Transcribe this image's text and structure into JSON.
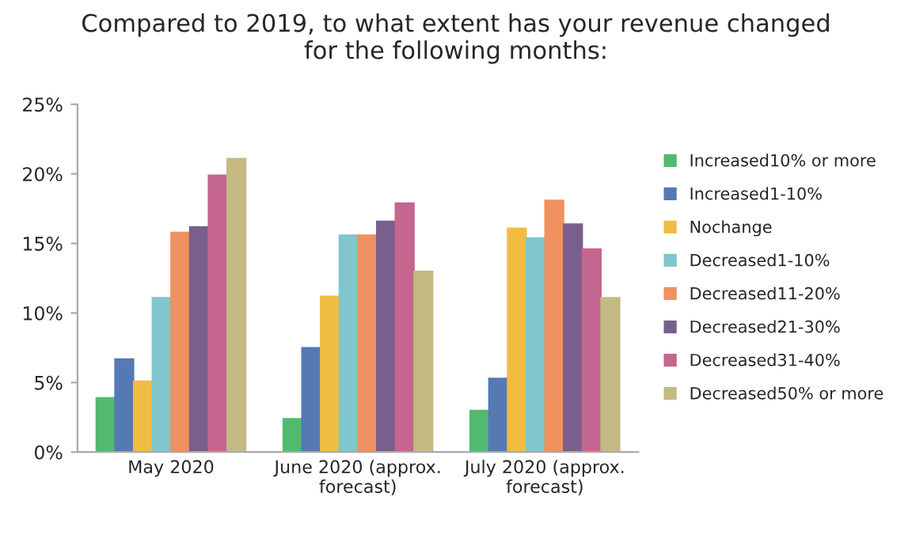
{
  "chart_data": {
    "type": "bar",
    "title": "Compared to 2019, to what extent has your revenue changed\nfor the following months:",
    "categories": [
      "May 2020",
      "June 2020 (approx.\nforecast)",
      "July 2020 (approx.\nforecast)"
    ],
    "series": [
      {
        "name": "Increased10% or more",
        "color": "#52ba6f",
        "values": [
          3.9,
          2.4,
          3.0
        ]
      },
      {
        "name": "Increased1-10%",
        "color": "#557ab3",
        "values": [
          6.7,
          7.5,
          5.3
        ]
      },
      {
        "name": "Nochange",
        "color": "#f0bd42",
        "values": [
          5.1,
          11.2,
          16.1
        ]
      },
      {
        "name": "Decreased1-10%",
        "color": "#80c6cc",
        "values": [
          11.1,
          15.6,
          15.4
        ]
      },
      {
        "name": "Decreased11-20%",
        "color": "#ef9160",
        "values": [
          15.8,
          15.6,
          18.1
        ]
      },
      {
        "name": "Decreased21-30%",
        "color": "#795f8c",
        "values": [
          16.2,
          16.6,
          16.4
        ]
      },
      {
        "name": "Decreased31-40%",
        "color": "#c4668e",
        "values": [
          19.9,
          17.9,
          14.6
        ]
      },
      {
        "name": "Decreased50% or more",
        "color": "#c5b983",
        "values": [
          21.1,
          13.0,
          11.1
        ]
      }
    ],
    "ylim": [
      0,
      25
    ],
    "yticks": [
      {
        "value": 0,
        "label": "0%"
      },
      {
        "value": 5,
        "label": "5%"
      },
      {
        "value": 10,
        "label": "10%"
      },
      {
        "value": 15,
        "label": "15%"
      },
      {
        "value": 20,
        "label": "20%"
      },
      {
        "value": 25,
        "label": "25%"
      }
    ],
    "legend": "right",
    "grid": false
  }
}
